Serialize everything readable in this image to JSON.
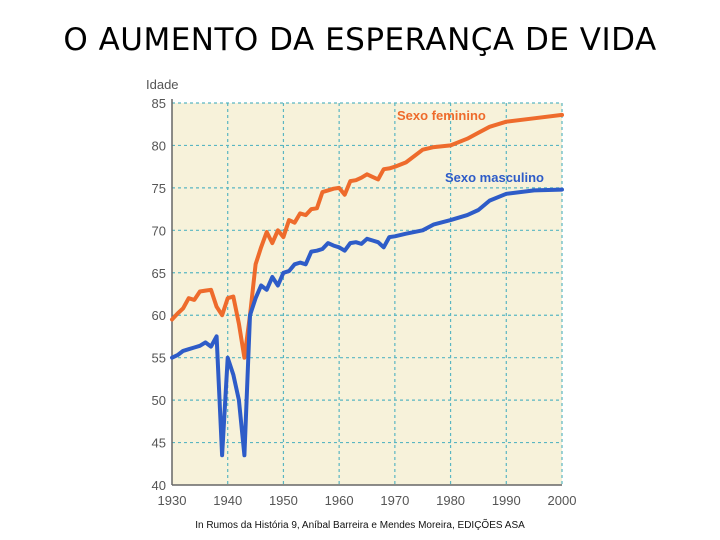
{
  "page": {
    "title": "O AUMENTO DA ESPERANÇA DE VIDA",
    "caption": "In Rumos da História 9, Aníbal Barreira e Mendes Moreira, EDIÇÕES ASA"
  },
  "chart_data": {
    "type": "line",
    "title": "",
    "xlabel": "",
    "ylabel": "Idade",
    "xlim": [
      1930,
      2000
    ],
    "ylim": [
      40,
      85
    ],
    "x_ticks": [
      "1930",
      "1940",
      "1950",
      "1960",
      "1970",
      "1980",
      "1990",
      "2000"
    ],
    "y_ticks": [
      "85",
      "80",
      "75",
      "70",
      "65",
      "60",
      "55",
      "50",
      "45",
      "40"
    ],
    "grid": true,
    "grid_style": "dashed",
    "background_color": "#f7f2da",
    "grid_color": "#5ab6c2",
    "axis_color": "#666666",
    "series": [
      {
        "name": "Sexo feminino",
        "color": "#ee6b2c",
        "label_color": "#ee6b2c",
        "x": [
          1930,
          1931,
          1932,
          1933,
          1934,
          1935,
          1936,
          1937,
          1938,
          1939,
          1940,
          1941,
          1942,
          1943,
          1944,
          1945,
          1946,
          1947,
          1948,
          1949,
          1950,
          1951,
          1952,
          1953,
          1954,
          1955,
          1956,
          1957,
          1958,
          1959,
          1960,
          1961,
          1962,
          1963,
          1964,
          1965,
          1966,
          1967,
          1968,
          1969,
          1970,
          1972,
          1975,
          1977,
          1980,
          1983,
          1985,
          1987,
          1990,
          1995,
          2000
        ],
        "values": [
          59.5,
          60.2,
          60.8,
          62.0,
          61.8,
          62.8,
          62.9,
          63.0,
          61.0,
          60.0,
          62.0,
          62.2,
          59.0,
          55.0,
          60.0,
          66.0,
          68.0,
          69.8,
          68.5,
          70.0,
          69.2,
          71.2,
          70.9,
          72.0,
          71.8,
          72.5,
          72.6,
          74.5,
          74.7,
          74.9,
          75.0,
          74.2,
          75.8,
          75.9,
          76.2,
          76.6,
          76.3,
          76.0,
          77.2,
          77.3,
          77.5,
          78.0,
          79.5,
          79.8,
          80.0,
          80.8,
          81.5,
          82.2,
          82.8,
          83.2,
          83.6
        ]
      },
      {
        "name": "Sexo masculino",
        "color": "#2e5cc8",
        "label_color": "#2e5cc8",
        "x": [
          1930,
          1931,
          1932,
          1933,
          1934,
          1935,
          1936,
          1937,
          1938,
          1939,
          1940,
          1941,
          1942,
          1943,
          1944,
          1945,
          1946,
          1947,
          1948,
          1949,
          1950,
          1951,
          1952,
          1953,
          1954,
          1955,
          1956,
          1957,
          1958,
          1959,
          1960,
          1961,
          1962,
          1963,
          1964,
          1965,
          1966,
          1967,
          1968,
          1969,
          1970,
          1972,
          1975,
          1977,
          1980,
          1983,
          1985,
          1987,
          1990,
          1995,
          2000
        ],
        "values": [
          55.0,
          55.3,
          55.8,
          56.0,
          56.2,
          56.4,
          56.8,
          56.3,
          57.5,
          43.5,
          55.0,
          53.0,
          50.0,
          43.5,
          60.0,
          62.0,
          63.5,
          63.0,
          64.5,
          63.5,
          65.0,
          65.2,
          66.0,
          66.2,
          66.0,
          67.5,
          67.6,
          67.8,
          68.5,
          68.2,
          68.0,
          67.6,
          68.5,
          68.6,
          68.4,
          69.0,
          68.8,
          68.6,
          68.0,
          69.2,
          69.3,
          69.6,
          70.0,
          70.7,
          71.2,
          71.8,
          72.4,
          73.5,
          74.3,
          74.7,
          74.8
        ]
      }
    ],
    "legend": "inline labels above lines (top-right)"
  }
}
